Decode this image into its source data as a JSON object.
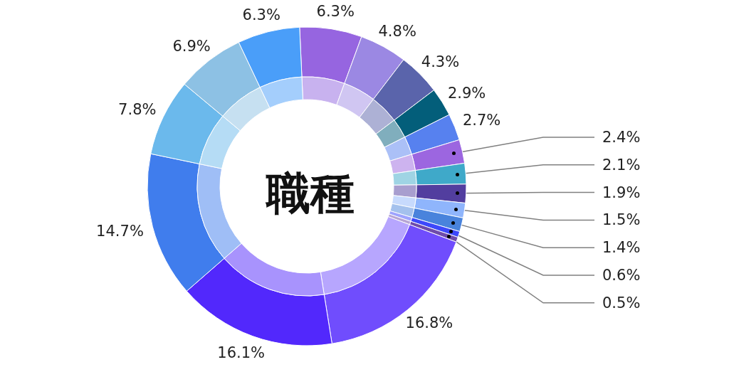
{
  "chart_data": {
    "type": "donut",
    "title": "職種",
    "categories": [
      null,
      null,
      null,
      null,
      null,
      null,
      null,
      null,
      null,
      null,
      null,
      null,
      null,
      null,
      null,
      null,
      null,
      null
    ],
    "series": [
      {
        "values": [
          6.3,
          4.8,
          4.3,
          2.9,
          2.7,
          2.4,
          2.1,
          1.9,
          1.5,
          1.4,
          0.6,
          0.5,
          16.8,
          16.1,
          14.7,
          7.8,
          6.9,
          6.3
        ],
        "colors": [
          "#9665e0",
          "#9b88e3",
          "#5a64ab",
          "#035e7a",
          "#5781ef",
          "#9c66e0",
          "#3fa9c9",
          "#523e9f",
          "#8fb5fc",
          "#4983dc",
          "#3d48fb",
          "#6f4caa",
          "#704dfd",
          "#5228fc",
          "#407ded",
          "#6bb9ec",
          "#8dc1e4",
          "#4a9ef9"
        ],
        "value_labels": [
          "6.3%",
          "4.8%",
          "4.3%",
          "2.9%",
          "2.7%",
          "2.4%",
          "2.1%",
          "1.9%",
          "1.5%",
          "1.4%",
          "0.6%",
          "0.5%",
          "16.8%",
          "16.1%",
          "14.7%",
          "7.8%",
          "6.9%",
          "6.3%"
        ]
      },
      {
        "values": [
          6.3,
          4.8,
          4.3,
          2.9,
          2.7,
          2.4,
          2.1,
          1.9,
          1.5,
          1.4,
          0.6,
          0.5,
          16.8,
          16.1,
          14.7,
          7.8,
          6.9,
          6.3
        ],
        "colors": [
          "#c8b2ef",
          "#d0c6f2",
          "#adb1d5",
          "#80aebd",
          "#abc0f7",
          "#cdb3ef",
          "#9fd4e4",
          "#a89ecf",
          "#c7dafd",
          "#a4c1ed",
          "#9ea3fd",
          "#b7a5d4",
          "#b7a6fe",
          "#a893fd",
          "#9fbef6",
          "#b5dcf5",
          "#c6e0f1",
          "#a4cefc"
        ]
      }
    ]
  }
}
